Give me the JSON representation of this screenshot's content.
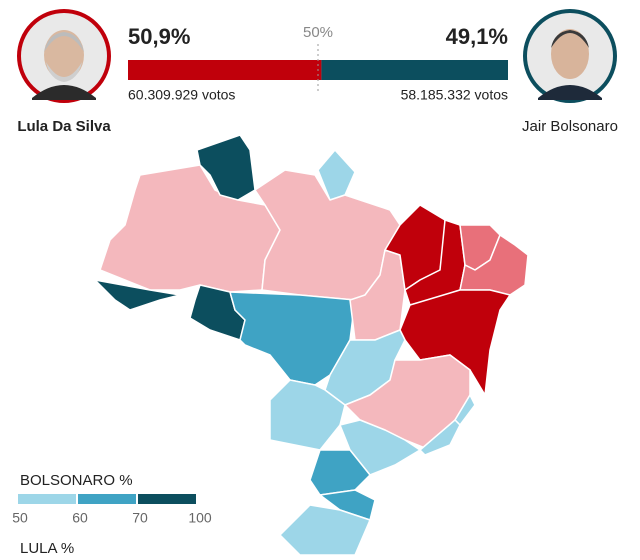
{
  "header": {
    "candidates": [
      {
        "name": "Lula Da Silva",
        "percent": {
          "value": 50.9,
          "label": "50,9%"
        },
        "votes": "60.309.929 votos",
        "color": "#c0000b"
      },
      {
        "name": "Jair Bolsonaro",
        "percent": {
          "value": 49.1,
          "label": "49,1%"
        },
        "votes": "58.185.332 votos",
        "color": "#0c4e5e"
      }
    ],
    "midpoint": {
      "value": 50,
      "label": "50%"
    }
  },
  "legend": {
    "title": "BOLSONARO %",
    "ticks": [
      50,
      60,
      70,
      100
    ],
    "colors": [
      "#9dd6e8",
      "#3fa3c4",
      "#0c4e5e"
    ],
    "second_title": "LULA %"
  }
}
